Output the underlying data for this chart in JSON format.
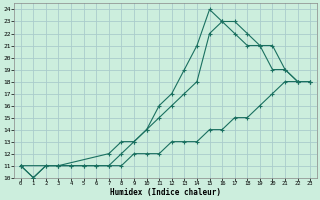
{
  "xlabel": "Humidex (Indice chaleur)",
  "bg_color": "#cceedd",
  "grid_color": "#aacccc",
  "line_color": "#1a7060",
  "xlim": [
    -0.5,
    23.5
  ],
  "ylim": [
    10,
    24.5
  ],
  "xticks": [
    0,
    1,
    2,
    3,
    4,
    5,
    6,
    7,
    8,
    9,
    10,
    11,
    12,
    13,
    14,
    15,
    16,
    17,
    18,
    19,
    20,
    21,
    22,
    23
  ],
  "yticks": [
    10,
    11,
    12,
    13,
    14,
    15,
    16,
    17,
    18,
    19,
    20,
    21,
    22,
    23,
    24
  ],
  "line1_x": [
    0,
    1,
    2,
    3,
    4,
    5,
    6,
    7,
    8,
    9,
    10,
    11,
    12,
    13,
    14,
    15,
    16,
    17,
    18,
    19,
    20,
    21,
    22,
    23
  ],
  "line1_y": [
    11,
    10,
    11,
    11,
    11,
    11,
    11,
    11,
    12,
    13,
    14,
    16,
    17,
    19,
    21,
    24,
    23,
    22,
    21,
    21,
    19,
    19,
    18,
    18
  ],
  "line2_x": [
    0,
    3,
    7,
    8,
    9,
    10,
    11,
    12,
    13,
    14,
    15,
    16,
    17,
    18,
    19,
    20,
    21,
    22,
    23
  ],
  "line2_y": [
    11,
    11,
    12,
    13,
    13,
    14,
    15,
    16,
    17,
    18,
    22,
    23,
    23,
    22,
    21,
    21,
    19,
    18,
    18
  ],
  "line3_x": [
    0,
    1,
    2,
    3,
    4,
    5,
    6,
    7,
    8,
    9,
    10,
    11,
    12,
    13,
    14,
    15,
    16,
    17,
    18,
    19,
    20,
    21,
    22,
    23
  ],
  "line3_y": [
    11,
    10,
    11,
    11,
    11,
    11,
    11,
    11,
    11,
    12,
    12,
    12,
    13,
    13,
    13,
    14,
    14,
    15,
    15,
    16,
    17,
    18,
    18,
    18
  ]
}
